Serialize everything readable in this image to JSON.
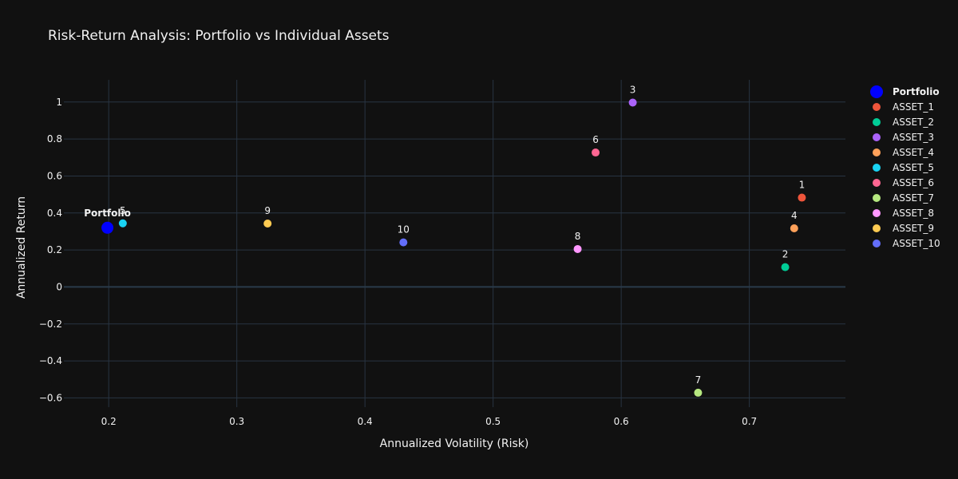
{
  "chart_data": {
    "type": "scatter",
    "title": "Risk-Return Analysis: Portfolio vs Individual Assets",
    "xlabel": "Annualized Volatility (Risk)",
    "ylabel": "Annualized Return",
    "xlim": [
      0.165,
      0.775
    ],
    "ylim": [
      -0.65,
      1.12
    ],
    "x_ticks": [
      0.2,
      0.3,
      0.4,
      0.5,
      0.6,
      0.7
    ],
    "x_tick_labels": [
      "0.2",
      "0.3",
      "0.4",
      "0.5",
      "0.6",
      "0.7"
    ],
    "y_ticks": [
      -0.6,
      -0.4,
      -0.2,
      0,
      0.2,
      0.4,
      0.6,
      0.8,
      1
    ],
    "y_tick_labels": [
      "−0.6",
      "−0.4",
      "−0.2",
      "0",
      "0.2",
      "0.4",
      "0.6",
      "0.8",
      "1"
    ],
    "grid": true,
    "legend_position": "right",
    "series": [
      {
        "name": "Portfolio",
        "label": "Portfolio",
        "x": 0.199,
        "y": 0.32,
        "color": "#0000ff",
        "size": "large",
        "bold": true
      },
      {
        "name": "ASSET_1",
        "label": "1",
        "x": 0.741,
        "y": 0.483,
        "color": "#ef553b"
      },
      {
        "name": "ASSET_2",
        "label": "2",
        "x": 0.728,
        "y": 0.107,
        "color": "#00cc96"
      },
      {
        "name": "ASSET_3",
        "label": "3",
        "x": 0.609,
        "y": 0.997,
        "color": "#ab63fa"
      },
      {
        "name": "ASSET_4",
        "label": "4",
        "x": 0.735,
        "y": 0.317,
        "color": "#ffa15a"
      },
      {
        "name": "ASSET_5",
        "label": "5",
        "x": 0.211,
        "y": 0.344,
        "color": "#19d3f3"
      },
      {
        "name": "ASSET_6",
        "label": "6",
        "x": 0.58,
        "y": 0.727,
        "color": "#ff6692"
      },
      {
        "name": "ASSET_7",
        "label": "7",
        "x": 0.66,
        "y": -0.572,
        "color": "#b6e880"
      },
      {
        "name": "ASSET_8",
        "label": "8",
        "x": 0.566,
        "y": 0.205,
        "color": "#ff97ff"
      },
      {
        "name": "ASSET_9",
        "label": "9",
        "x": 0.324,
        "y": 0.343,
        "color": "#fecb52"
      },
      {
        "name": "ASSET_10",
        "label": "10",
        "x": 0.43,
        "y": 0.241,
        "color": "#636efa"
      }
    ]
  }
}
